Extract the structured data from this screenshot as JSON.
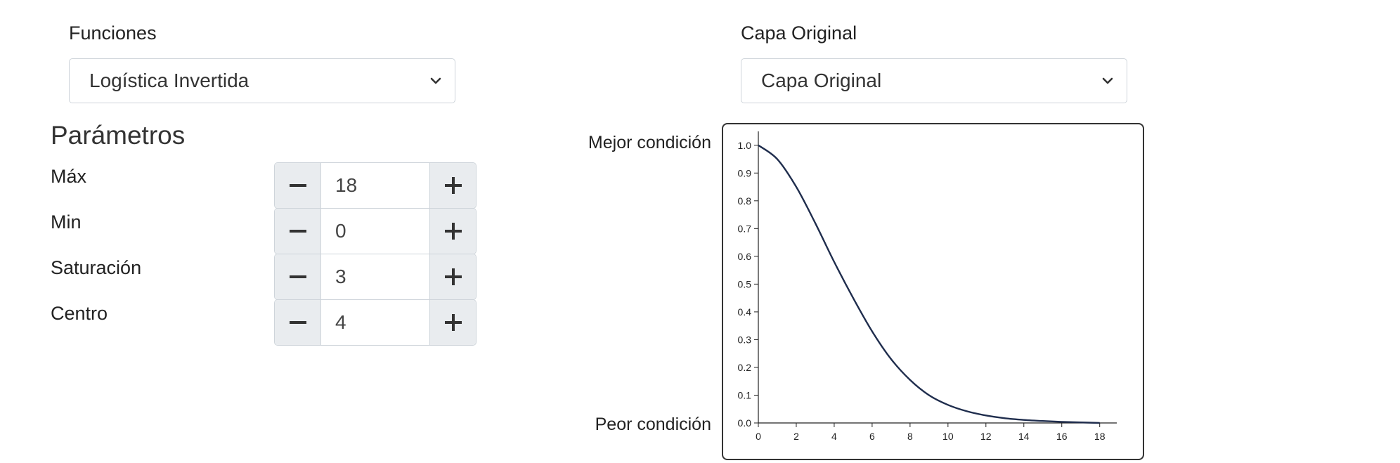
{
  "funciones": {
    "label": "Funciones",
    "selected": "Logística Invertida"
  },
  "capa": {
    "label": "Capa Original",
    "selected": "Capa Original"
  },
  "parametros": {
    "title": "Parámetros",
    "items": [
      {
        "label": "Máx",
        "value": "18"
      },
      {
        "label": "Min",
        "value": "0"
      },
      {
        "label": "Saturación",
        "value": "3"
      },
      {
        "label": "Centro",
        "value": "4"
      }
    ]
  },
  "chart": {
    "top_label": "Mejor condición",
    "bottom_label": "Peor condición"
  },
  "chart_data": {
    "type": "line",
    "x_ticks": [
      "0",
      "2",
      "4",
      "6",
      "8",
      "10",
      "12",
      "14",
      "16",
      "18"
    ],
    "y_ticks": [
      "0.0",
      "0.1",
      "0.2",
      "0.3",
      "0.4",
      "0.5",
      "0.6",
      "0.7",
      "0.8",
      "0.9",
      "1.0"
    ],
    "xlim": [
      0,
      18.9
    ],
    "ylim": [
      0,
      1.05
    ],
    "series": [
      {
        "color": "#1f2d4d",
        "x": [
          0,
          1,
          2,
          3,
          4,
          5,
          6,
          7,
          8,
          9,
          10,
          11,
          12,
          13,
          14,
          15,
          16,
          17,
          18
        ],
        "y": [
          1.0,
          0.95,
          0.85,
          0.72,
          0.58,
          0.45,
          0.33,
          0.23,
          0.155,
          0.1,
          0.065,
          0.042,
          0.027,
          0.017,
          0.011,
          0.007,
          0.004,
          0.002,
          0.0
        ]
      }
    ]
  }
}
